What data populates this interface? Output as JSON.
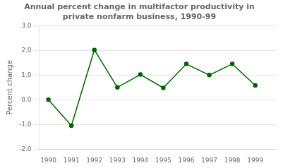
{
  "chart_data": {
    "type": "line",
    "title": "Annual percent change in multifactor productivity in\nprivate nonfarm business, 1990-99",
    "ylabel": "Percent change",
    "x": [
      1990,
      1991,
      1992,
      1993,
      1994,
      1995,
      1996,
      1997,
      1998,
      1999
    ],
    "values": [
      0.0,
      -1.05,
      2.02,
      0.5,
      1.02,
      0.48,
      1.45,
      1.0,
      1.45,
      0.58
    ],
    "color": "#006400",
    "marker": "circle",
    "xlim": [
      1989.6,
      1999.9
    ],
    "xticks": [
      1990,
      1991,
      1992,
      1993,
      1994,
      1995,
      1996,
      1997,
      1998,
      1999
    ],
    "ylim": [
      -2.0,
      3.0
    ],
    "yticks": [
      {
        "value": -2.0,
        "label": "-2.0"
      },
      {
        "value": -1.0,
        "label": "-1.0"
      },
      {
        "value": 0.0,
        "label": "0.0"
      },
      {
        "value": 1.0,
        "label": "1.0"
      },
      {
        "value": 2.0,
        "label": "2.0"
      },
      {
        "value": 3.0,
        "label": "3.0"
      }
    ],
    "grid": "y"
  }
}
